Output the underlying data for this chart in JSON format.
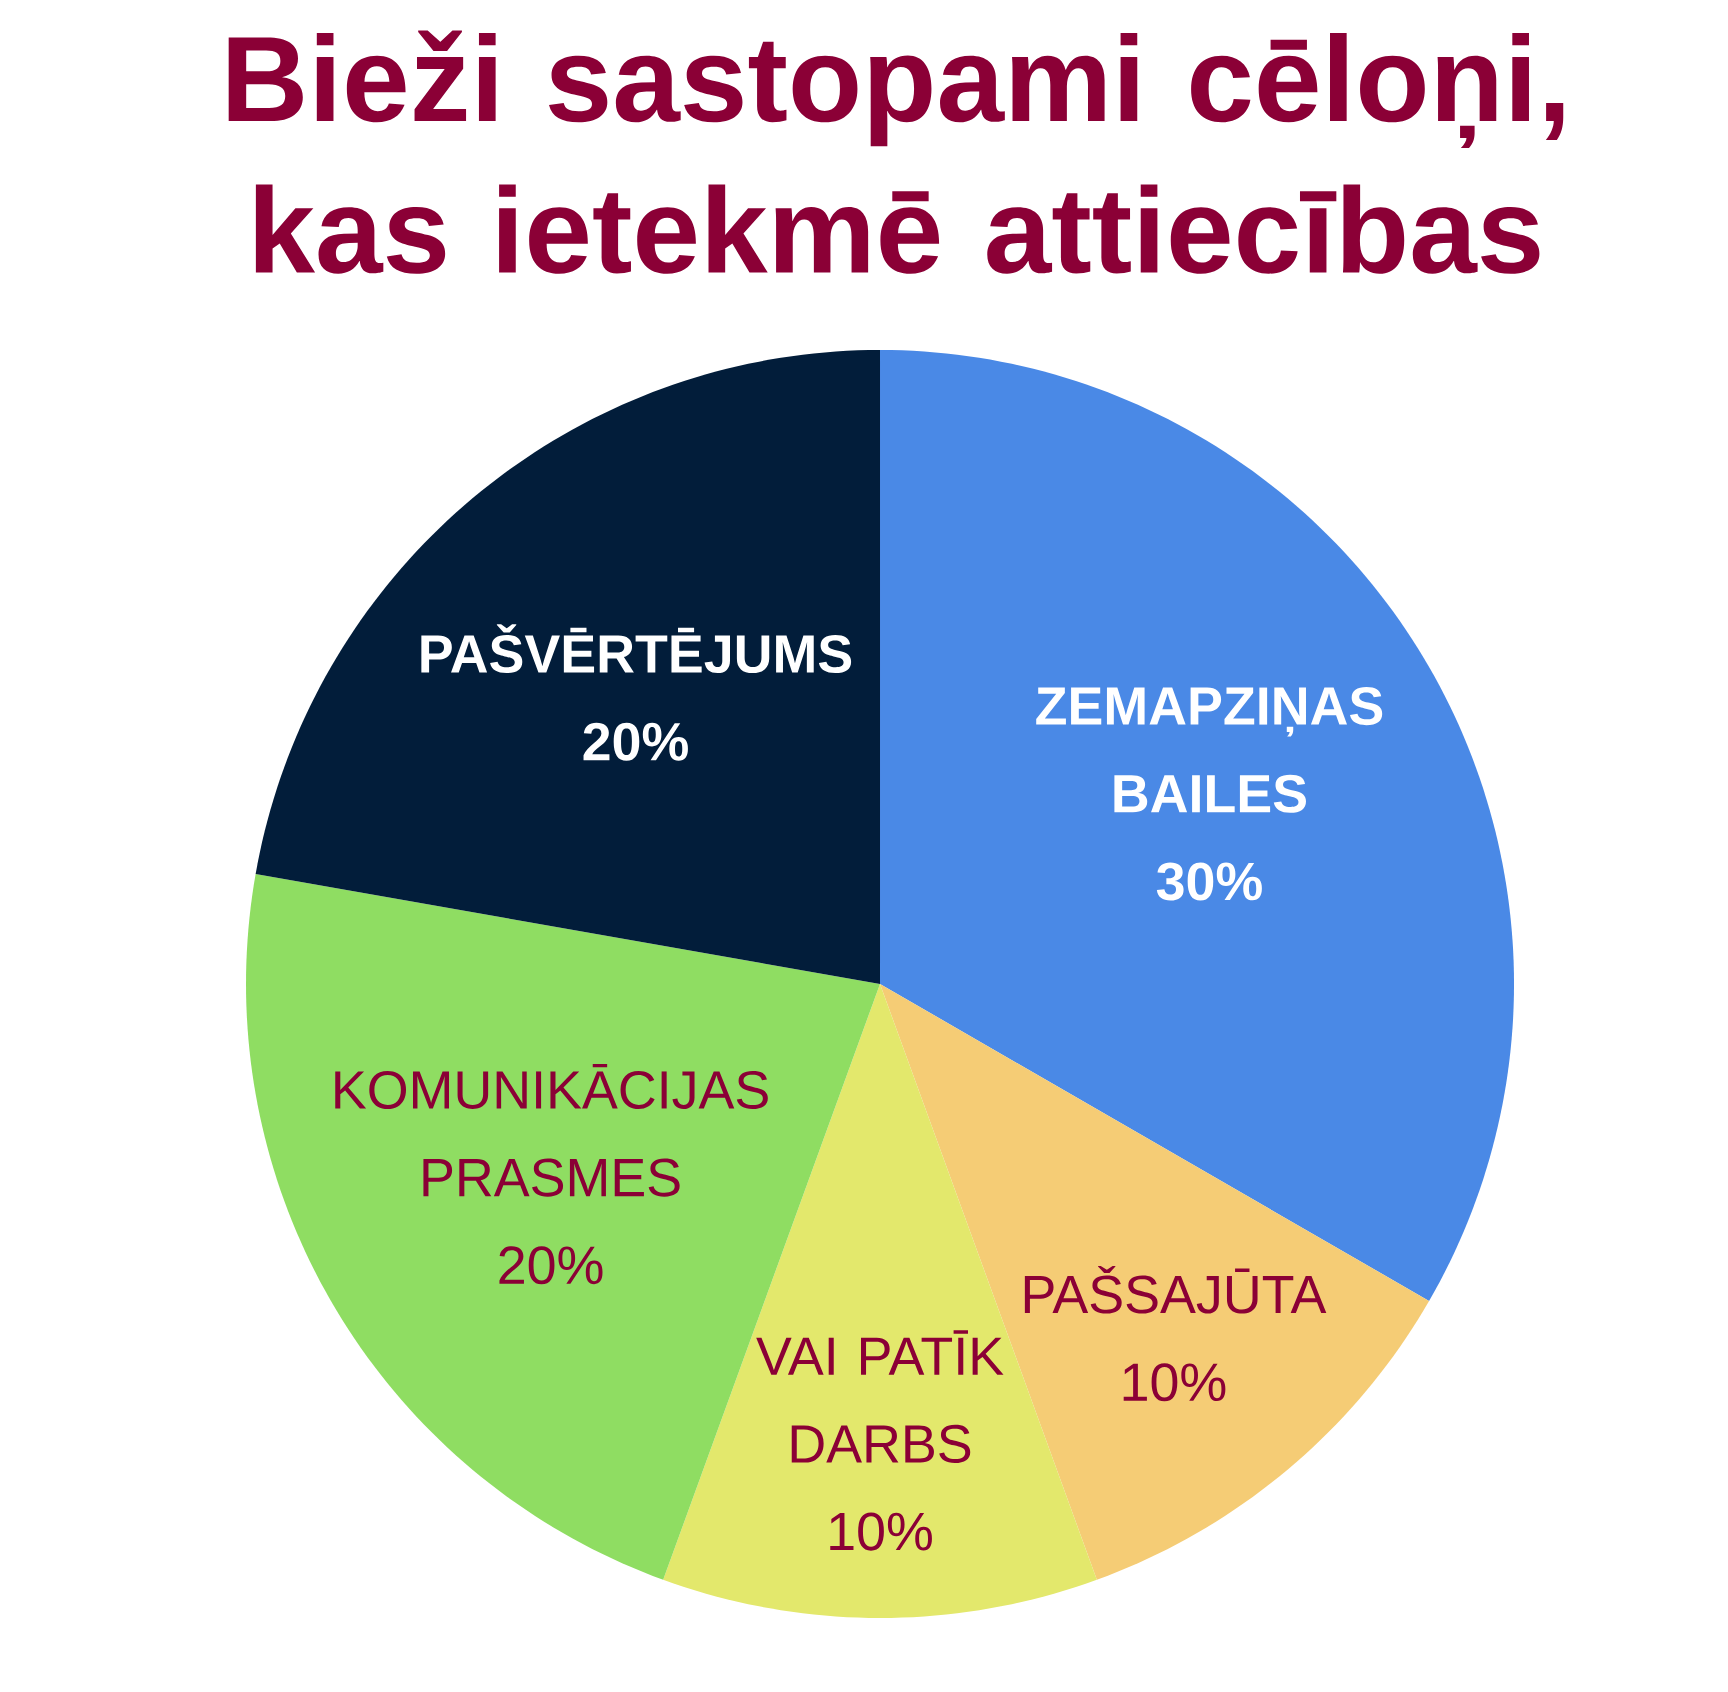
{
  "chart_data": {
    "type": "pie",
    "title": "Bieži sastopami cēloņi, kas ietekmē attiecības",
    "categories": [
      "ZEMAPZIŅAS BAILES",
      "PAŠSAJŪTA",
      "VAI PATĪK DARBS",
      "KOMUNIKĀCIJAS PRASMES",
      "PAŠVĒRTĒJUMS"
    ],
    "values": [
      30,
      10,
      10,
      20,
      20
    ],
    "value_labels": [
      "30%",
      "10%",
      "10%",
      "20%",
      "20%"
    ],
    "colors": [
      "#4a89e6",
      "#f5cc75",
      "#e3e86c",
      "#8fdd62",
      "#021d3a"
    ]
  }
}
